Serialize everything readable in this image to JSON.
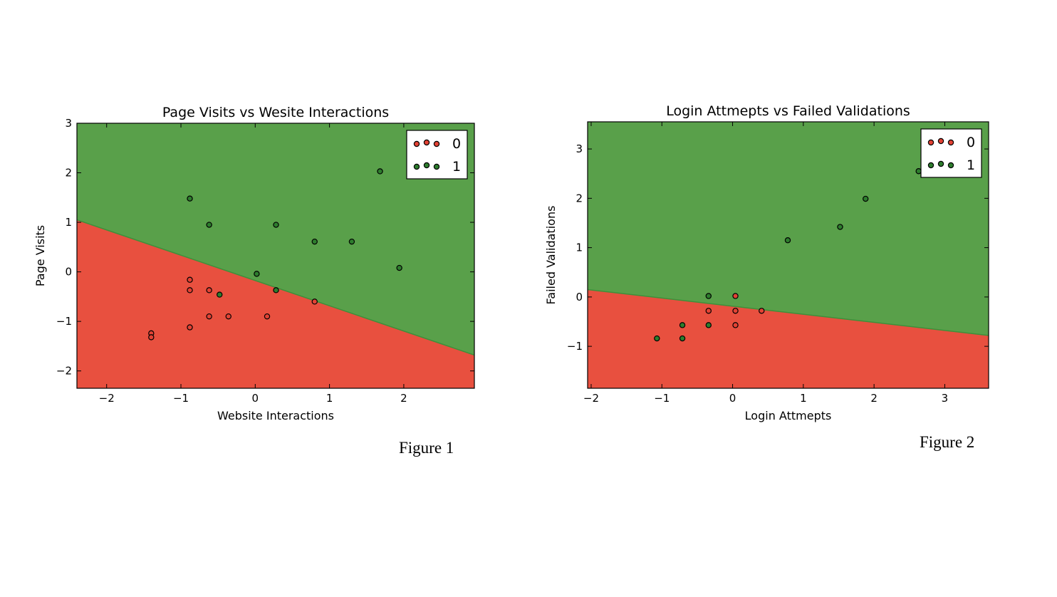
{
  "figures": [
    {
      "caption": "Figure 1"
    },
    {
      "caption": "Figure 2"
    }
  ],
  "colors": {
    "class0_region": "#e8503f",
    "class1_region": "#59a04a",
    "class0_point": "#e34234",
    "class1_point": "#2d7d2d"
  },
  "chart_data": [
    {
      "type": "scatter",
      "title": "Page Visits vs Wesite Interactions",
      "xlabel": "Website Interactions",
      "ylabel": "Page Visits",
      "xlim": [
        -2.4,
        2.95
      ],
      "ylim": [
        -2.35,
        3.0
      ],
      "xticks": [
        -2,
        -1,
        0,
        1,
        2
      ],
      "yticks": [
        -2,
        -1,
        0,
        1,
        2,
        3
      ],
      "xtick_labels": [
        "−2",
        "−1",
        "0",
        "1",
        "2"
      ],
      "ytick_labels": [
        "−2",
        "−1",
        "0",
        "1",
        "2",
        "3"
      ],
      "decision_boundary": {
        "x": [
          -2.4,
          2.95
        ],
        "y": [
          1.05,
          -1.68
        ]
      },
      "legend": {
        "placement": "top-right",
        "labels": [
          "0",
          "1"
        ]
      },
      "series": [
        {
          "name": "0",
          "x": [
            -0.88,
            -0.88,
            -0.62,
            -0.62,
            -0.36,
            0.16,
            0.8,
            -0.88,
            -1.4,
            -1.4
          ],
          "y": [
            -0.16,
            -0.37,
            -0.37,
            -0.9,
            -0.9,
            -0.9,
            -0.6,
            -1.12,
            -1.24,
            -1.32
          ]
        },
        {
          "name": "1",
          "x": [
            -0.88,
            -0.62,
            0.28,
            0.8,
            1.3,
            1.68,
            1.94,
            0.02,
            -0.48,
            0.28
          ],
          "y": [
            1.48,
            0.95,
            0.95,
            0.61,
            0.61,
            2.03,
            0.08,
            -0.04,
            -0.46,
            -0.37
          ]
        }
      ]
    },
    {
      "type": "scatter",
      "title": "Login Attmepts vs Failed Validations",
      "xlabel": "Login Attmepts",
      "ylabel": "Failed Validations",
      "xlim": [
        -2.05,
        3.62
      ],
      "ylim": [
        -1.85,
        3.55
      ],
      "xticks": [
        -2,
        -1,
        0,
        1,
        2,
        3
      ],
      "yticks": [
        -1,
        0,
        1,
        2,
        3
      ],
      "xtick_labels": [
        "−2",
        "−1",
        "0",
        "1",
        "2",
        "3"
      ],
      "ytick_labels": [
        "−1",
        "0",
        "1",
        "2",
        "3"
      ],
      "decision_boundary": {
        "x": [
          -2.05,
          3.62
        ],
        "y": [
          0.15,
          -0.78
        ]
      },
      "legend": {
        "placement": "top-right",
        "labels": [
          "0",
          "1"
        ]
      },
      "series": [
        {
          "name": "0",
          "x": [
            0.04,
            -0.34,
            0.04,
            0.41,
            0.04
          ],
          "y": [
            0.02,
            -0.28,
            -0.28,
            -0.28,
            -0.57
          ]
        },
        {
          "name": "1",
          "x": [
            -0.34,
            -0.34,
            -0.71,
            -0.71,
            -1.07,
            0.78,
            1.52,
            1.88,
            2.63
          ],
          "y": [
            0.02,
            -0.57,
            -0.57,
            -0.84,
            -0.84,
            1.15,
            1.42,
            1.99,
            2.55
          ]
        }
      ]
    }
  ]
}
